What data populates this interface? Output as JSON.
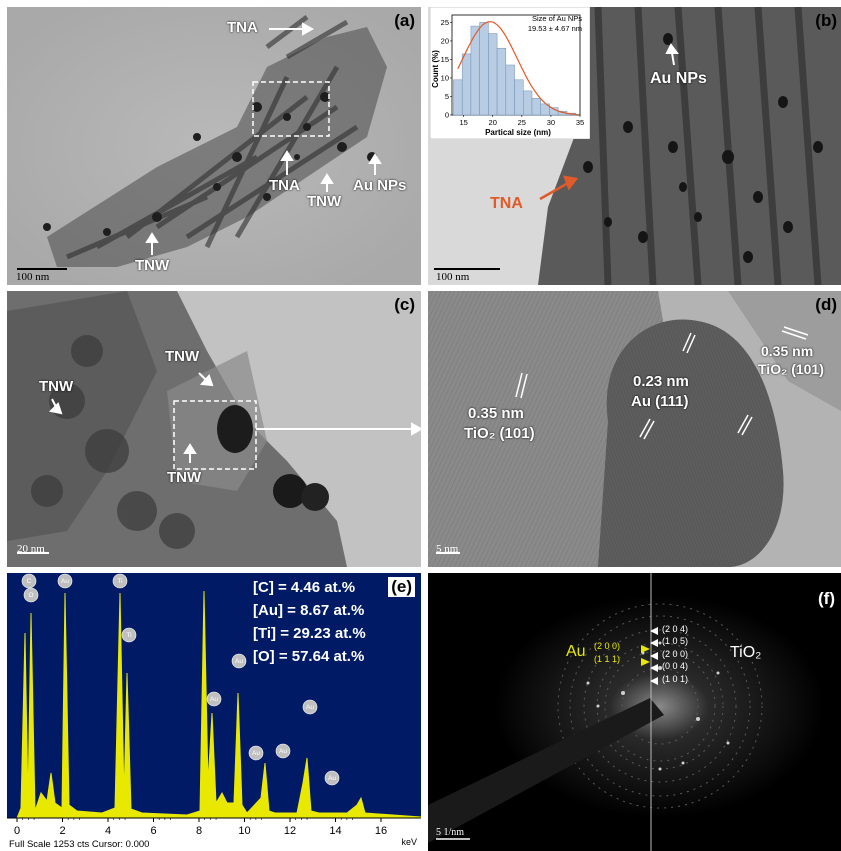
{
  "panels": {
    "a": {
      "label": "(a)",
      "labels": [
        "TNA",
        "TNA",
        "TNW",
        "TNW",
        "Au NPs"
      ],
      "scale": "100 nm"
    },
    "b": {
      "label": "(b)",
      "au_label": "Au NPs",
      "tna_label": "TNA",
      "scale": "100 nm",
      "inset": {
        "title": "Size of Au NPs",
        "subtitle": "19.53 ± 4.67 nm",
        "xlabel": "Partical size (nm)",
        "ylabel": "Count (%)",
        "xticks": [
          "15",
          "20",
          "25",
          "30",
          "35"
        ],
        "yticks": [
          "0",
          "5",
          "10",
          "15",
          "20",
          "25"
        ]
      }
    },
    "c": {
      "label": "(c)",
      "labels": [
        "TNW",
        "TNW",
        "TNW"
      ],
      "scale": "20 nm"
    },
    "d": {
      "label": "(d)",
      "ann_left_1": "0.35 nm",
      "ann_left_2": "TiO₂ (101)",
      "ann_mid_1": "0.23 nm",
      "ann_mid_2": "Au (111)",
      "ann_right_1": "0.35 nm",
      "ann_right_2": "TiO₂ (101)",
      "scale": "5 nm"
    },
    "e": {
      "label": "(e)",
      "compositions": [
        "[C] = 4.46 at.%",
        "[Au] = 8.67 at.%",
        "[Ti] = 29.23 at.%",
        "[O] = 57.64 at.%"
      ],
      "xticks": [
        "0",
        "2",
        "4",
        "6",
        "8",
        "10",
        "12",
        "14",
        "16"
      ],
      "footer_left": "Full Scale 1253 cts Cursor: 0.000",
      "footer_right": "keV",
      "peak_labels": [
        "C",
        "O",
        "Au",
        "Ti",
        "Ti",
        "Au",
        "Au",
        "Au",
        "Au",
        "Au",
        "Au"
      ]
    },
    "f": {
      "label": "(f)",
      "au_label": "Au",
      "tio2_label": "TiO₂",
      "au_planes": [
        "(2 0 0)",
        "(1 1 1)"
      ],
      "tio2_planes": [
        "(2 0 4)",
        "(1 0 5)",
        "(2 0 0)",
        "(0 0 4)",
        "(1 0 1)"
      ],
      "scale": "5 1/nm"
    }
  },
  "chart_data": {
    "type": "bar",
    "title": "Size of Au NPs",
    "subtitle": "19.53 ± 4.67 nm",
    "xlabel": "Partical size (nm)",
    "ylabel": "Count (%)",
    "x": [
      14,
      15.5,
      17,
      18.5,
      20,
      21.5,
      23,
      24.5,
      26,
      27.5,
      29,
      30.5,
      32,
      33.5
    ],
    "values": [
      9.5,
      16.5,
      24,
      25,
      22,
      18,
      13.5,
      9.5,
      6.5,
      4.5,
      3,
      2,
      1,
      0.5
    ],
    "xlim": [
      13,
      35
    ],
    "ylim": [
      0,
      27
    ],
    "colors": {
      "bars": "#b8cde4",
      "fit": "#e05a2a"
    }
  }
}
